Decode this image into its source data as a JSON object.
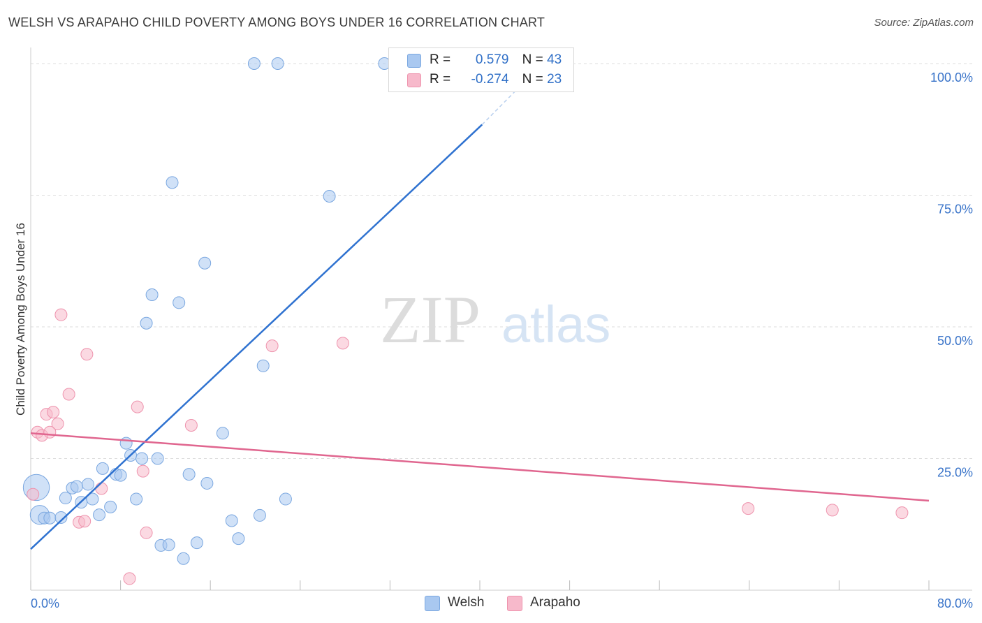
{
  "header": {
    "title": "WELSH VS ARAPAHO CHILD POVERTY AMONG BOYS UNDER 16 CORRELATION CHART",
    "source": "Source: ZipAtlas.com"
  },
  "watermark": {
    "zip": "ZIP",
    "atlas": "atlas"
  },
  "legend": {
    "welsh": {
      "r_label": "R =",
      "r_value": "0.579",
      "n_label": "N =",
      "n_value": "43"
    },
    "arapaho": {
      "r_label": "R =",
      "r_value": "-0.274",
      "n_label": "N =",
      "n_value": "23"
    }
  },
  "bottom_legend": {
    "welsh": "Welsh",
    "arapaho": "Arapaho"
  },
  "colors": {
    "welsh_fill": "#a9c8f0",
    "welsh_stroke": "#7aa7e0",
    "welsh_line": "#2f72d0",
    "arapaho_fill": "#f7b9cb",
    "arapaho_stroke": "#ee93ad",
    "arapaho_line": "#e0668f",
    "tick_label": "#3a74c9",
    "grid": "#dddddd"
  },
  "chart_data": {
    "type": "scatter",
    "title": "WELSH VS ARAPAHO CHILD POVERTY AMONG BOYS UNDER 16 CORRELATION CHART",
    "xlabel": "",
    "ylabel": "Child Poverty Among Boys Under 16",
    "xlim": [
      0,
      80
    ],
    "ylim": [
      0,
      100
    ],
    "x_tick_labels": [
      "0.0%",
      "80.0%"
    ],
    "y_ticks": [
      25,
      50,
      75,
      100
    ],
    "y_tick_labels": [
      "25.0%",
      "50.0%",
      "75.0%",
      "100.0%"
    ],
    "grid": true,
    "series": [
      {
        "name": "Welsh",
        "points": [
          [
            0.5,
            19.5,
            2.2
          ],
          [
            0.8,
            14.3,
            1.6
          ],
          [
            1.2,
            13.7,
            1
          ],
          [
            1.7,
            13.7,
            1
          ],
          [
            2.7,
            13.8,
            1
          ],
          [
            3.1,
            17.5,
            1
          ],
          [
            3.7,
            19.4,
            1
          ],
          [
            4.1,
            19.7,
            1
          ],
          [
            4.5,
            16.7,
            1
          ],
          [
            5.1,
            20.1,
            1
          ],
          [
            5.5,
            17.3,
            1
          ],
          [
            6.1,
            14.3,
            1
          ],
          [
            6.4,
            23.1,
            1
          ],
          [
            7.1,
            15.8,
            1
          ],
          [
            7.6,
            22.0,
            1
          ],
          [
            8.0,
            21.8,
            1
          ],
          [
            8.5,
            27.9,
            1
          ],
          [
            8.9,
            25.6,
            1
          ],
          [
            9.4,
            17.3,
            1
          ],
          [
            9.9,
            25.0,
            1
          ],
          [
            10.3,
            50.7,
            1
          ],
          [
            10.8,
            56.1,
            1
          ],
          [
            11.3,
            25.0,
            1
          ],
          [
            11.6,
            8.5,
            1
          ],
          [
            12.3,
            8.6,
            1
          ],
          [
            12.6,
            77.4,
            1
          ],
          [
            13.2,
            54.6,
            1
          ],
          [
            13.6,
            6.0,
            1
          ],
          [
            14.1,
            22.0,
            1
          ],
          [
            14.8,
            9.0,
            1
          ],
          [
            15.5,
            62.1,
            1
          ],
          [
            15.7,
            20.3,
            1
          ],
          [
            17.1,
            29.8,
            1
          ],
          [
            17.9,
            13.2,
            1
          ],
          [
            18.5,
            9.8,
            1
          ],
          [
            19.9,
            100.0,
            1
          ],
          [
            20.4,
            14.2,
            1
          ],
          [
            20.7,
            42.6,
            1
          ],
          [
            22.0,
            100.0,
            1
          ],
          [
            22.7,
            17.3,
            1
          ],
          [
            26.6,
            74.8,
            1
          ],
          [
            31.5,
            100.0,
            1
          ]
        ],
        "trend": {
          "x": [
            0,
            40.2
          ],
          "y": [
            7.8,
            88.4
          ],
          "dashed_to": [
            43.5,
            95.5
          ]
        }
      },
      {
        "name": "Arapaho",
        "points": [
          [
            0.2,
            18.2,
            1
          ],
          [
            0.6,
            30.0,
            1
          ],
          [
            1.0,
            29.4,
            1
          ],
          [
            1.4,
            33.4,
            1
          ],
          [
            1.7,
            30.0,
            1
          ],
          [
            2.0,
            33.8,
            1
          ],
          [
            2.4,
            31.6,
            1
          ],
          [
            2.7,
            52.3,
            1
          ],
          [
            3.4,
            37.2,
            1
          ],
          [
            4.3,
            12.9,
            1
          ],
          [
            4.8,
            13.1,
            1
          ],
          [
            5.0,
            44.8,
            1
          ],
          [
            6.3,
            19.3,
            1
          ],
          [
            8.8,
            2.2,
            1
          ],
          [
            9.5,
            34.8,
            1
          ],
          [
            10.0,
            22.6,
            1
          ],
          [
            10.3,
            10.9,
            1
          ],
          [
            14.3,
            31.3,
            1
          ],
          [
            21.5,
            46.4,
            1
          ],
          [
            27.8,
            46.9,
            1
          ],
          [
            63.9,
            15.5,
            1
          ],
          [
            71.4,
            15.2,
            1
          ],
          [
            77.6,
            14.7,
            1
          ]
        ],
        "trend": {
          "x": [
            0,
            80
          ],
          "y": [
            29.8,
            17.0
          ]
        }
      }
    ]
  }
}
